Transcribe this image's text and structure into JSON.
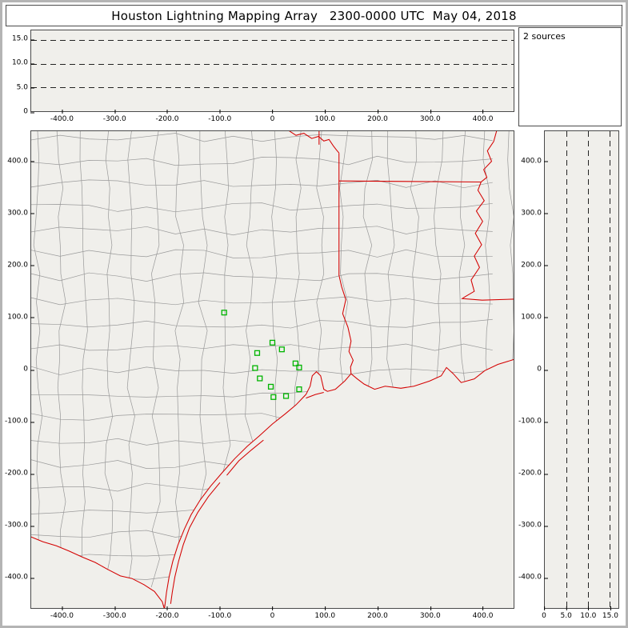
{
  "window": {
    "title": "Houston Lightning Mapping Array   2300-0000 UTC  May 04, 2018"
  },
  "sources_panel": {
    "label": "2 sources"
  },
  "colors": {
    "state_border": "#d40000",
    "county_line": "#9a9a9a",
    "station": "#00b400",
    "plot_background": "#f0efeb",
    "gridline": "#222222",
    "frame": "#b4b4b4"
  },
  "axes": {
    "map_x": [
      "-400.0",
      "-300.0",
      "-200.0",
      "-100.0",
      "0",
      "100.0",
      "200.0",
      "300.0",
      "400.0"
    ],
    "map_y": [
      "400.0",
      "300.0",
      "200.0",
      "100.0",
      "0",
      "-100.0",
      "-200.0",
      "-300.0",
      "-400.0"
    ],
    "alt_y": [
      "15.0",
      "10.0",
      "5.0",
      "0"
    ],
    "alt_x": [
      "0",
      "5.0",
      "10.0",
      "15.0"
    ],
    "map_range_km": [
      -460,
      460
    ],
    "altitude_range_km": [
      0,
      17
    ],
    "altitude_gridlines_km": [
      5,
      10,
      15
    ]
  },
  "stations": {
    "points": [
      [
        -92,
        110
      ],
      [
        0,
        52
      ],
      [
        -29,
        32
      ],
      [
        18,
        39
      ],
      [
        -33,
        3
      ],
      [
        -24,
        -17
      ],
      [
        -3,
        -33
      ],
      [
        44,
        12
      ],
      [
        51,
        4
      ],
      [
        2,
        -53
      ],
      [
        26,
        -51
      ],
      [
        51,
        -38
      ]
    ]
  }
}
